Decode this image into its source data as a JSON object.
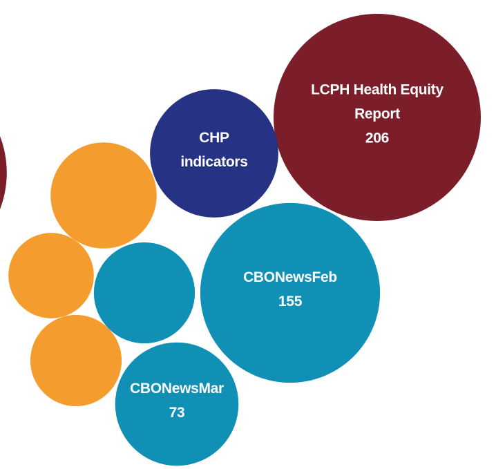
{
  "chart_data": {
    "type": "bubble",
    "categories": [
      null,
      "LCPH Health Equity Report",
      "CHP indicators",
      "CBONewsFeb",
      null,
      "CBONewsMar",
      null,
      null,
      null
    ],
    "values": [
      200,
      206,
      79,
      155,
      49,
      73,
      54,
      35,
      40
    ],
    "value_labels": [
      null,
      "206",
      null,
      "155",
      null,
      "73",
      null,
      null,
      null
    ],
    "colors": [
      "#7b1e29",
      "#7b1e29",
      "#263283",
      "#1190b6",
      "#1190b6",
      "#1190b6",
      "#f49c2e",
      "#f49c2e",
      "#f49c2e"
    ]
  }
}
